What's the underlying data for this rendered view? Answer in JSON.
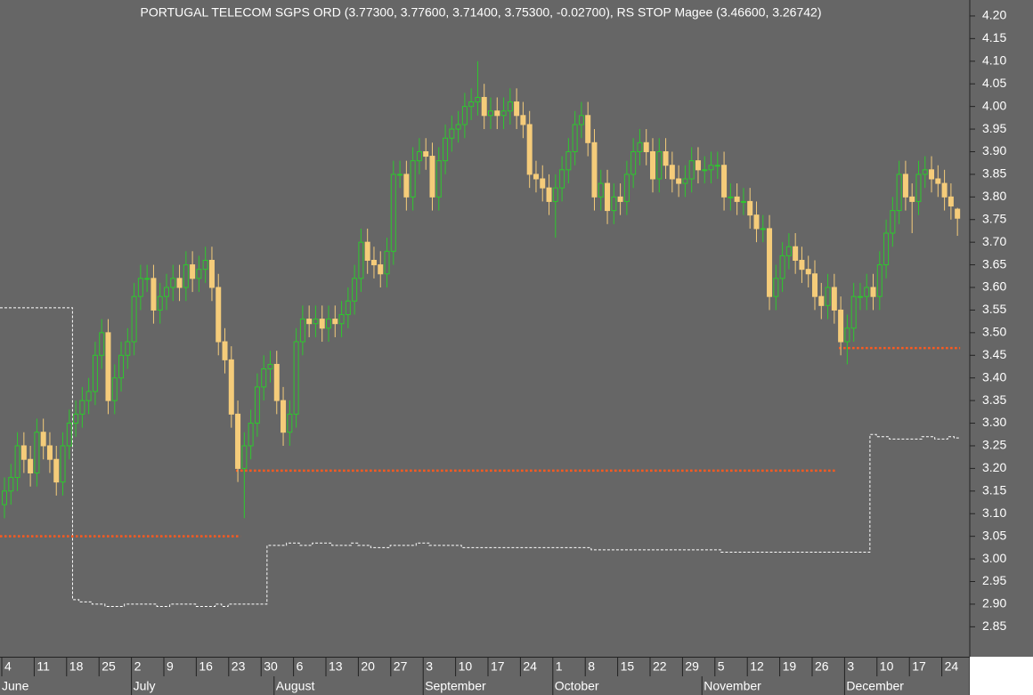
{
  "chart_data": {
    "type": "candlestick",
    "title": "PORTUGAL TELECOM SGPS ORD (3.77300, 3.77600, 3.71400, 3.75300, -0.02700), RS STOP Magee (3.46600, 3.26742)",
    "up_color": "#2ec82e",
    "down_color": "#f5cc7a",
    "stop_color": "#ffffff",
    "level_color": "#ff5a1f",
    "open": [
      3.12,
      3.15,
      3.18,
      3.25,
      3.22,
      3.19,
      3.28,
      3.25,
      3.22,
      3.17,
      3.25,
      3.3,
      3.32,
      3.35,
      3.37,
      3.45,
      3.5,
      3.35,
      3.4,
      3.45,
      3.48,
      3.58,
      3.62,
      3.62,
      3.55,
      3.58,
      3.6,
      3.62,
      3.6,
      3.65,
      3.62,
      3.64,
      3.66,
      3.6,
      3.48,
      3.44,
      3.32,
      3.2,
      3.25,
      3.3,
      3.38,
      3.42,
      3.43,
      3.35,
      3.28,
      3.32,
      3.48,
      3.53,
      3.52,
      3.53,
      3.51,
      3.53,
      3.52,
      3.54,
      3.57,
      3.62,
      3.7,
      3.66,
      3.65,
      3.63,
      3.68,
      3.85,
      3.85,
      3.8,
      3.88,
      3.9,
      3.89,
      3.8,
      3.88,
      3.93,
      3.95,
      3.96,
      4.0,
      4.01,
      4.02,
      3.98,
      3.99,
      3.98,
      3.99,
      4.01,
      3.98,
      3.96,
      3.85,
      3.84,
      3.82,
      3.79,
      3.82,
      3.86,
      3.9,
      3.96,
      3.98,
      3.92,
      3.8,
      3.83,
      3.77,
      3.8,
      3.79,
      3.85,
      3.9,
      3.92,
      3.9,
      3.84,
      3.9,
      3.87,
      3.84,
      3.83,
      3.84,
      3.88,
      3.86,
      3.86,
      3.87,
      3.87,
      3.8,
      3.8,
      3.79,
      3.79,
      3.76,
      3.73,
      3.73,
      3.58,
      3.62,
      3.67,
      3.69,
      3.66,
      3.64,
      3.63,
      3.58,
      3.56,
      3.6,
      3.55,
      3.48,
      3.51,
      3.58,
      3.58,
      3.6,
      3.58,
      3.65,
      3.72,
      3.77,
      3.85,
      3.8,
      3.79,
      3.85,
      3.86,
      3.84,
      3.83,
      3.8,
      3.773
    ],
    "high": [
      3.18,
      3.21,
      3.28,
      3.28,
      3.25,
      3.31,
      3.31,
      3.28,
      3.25,
      3.28,
      3.33,
      3.35,
      3.38,
      3.4,
      3.48,
      3.53,
      3.53,
      3.43,
      3.48,
      3.51,
      3.61,
      3.65,
      3.65,
      3.65,
      3.61,
      3.63,
      3.65,
      3.65,
      3.68,
      3.68,
      3.67,
      3.69,
      3.69,
      3.63,
      3.51,
      3.47,
      3.35,
      3.28,
      3.33,
      3.41,
      3.45,
      3.46,
      3.46,
      3.38,
      3.35,
      3.51,
      3.56,
      3.56,
      3.56,
      3.56,
      3.56,
      3.56,
      3.57,
      3.6,
      3.65,
      3.73,
      3.73,
      3.69,
      3.68,
      3.71,
      3.88,
      3.88,
      3.88,
      3.91,
      3.93,
      3.93,
      3.92,
      3.91,
      3.96,
      3.98,
      3.99,
      4.03,
      4.04,
      4.1,
      4.05,
      4.02,
      4.02,
      4.02,
      4.04,
      4.04,
      4.01,
      3.99,
      3.88,
      3.87,
      3.85,
      3.85,
      3.89,
      3.93,
      3.99,
      4.01,
      4.01,
      3.95,
      3.86,
      3.86,
      3.83,
      3.83,
      3.88,
      3.93,
      3.95,
      3.95,
      3.93,
      3.93,
      3.93,
      3.9,
      3.87,
      3.87,
      3.91,
      3.91,
      3.89,
      3.9,
      3.9,
      3.9,
      3.83,
      3.83,
      3.82,
      3.82,
      3.79,
      3.76,
      3.76,
      3.65,
      3.7,
      3.72,
      3.72,
      3.69,
      3.67,
      3.66,
      3.61,
      3.63,
      3.63,
      3.58,
      3.54,
      3.61,
      3.61,
      3.63,
      3.63,
      3.68,
      3.75,
      3.8,
      3.88,
      3.88,
      3.83,
      3.88,
      3.89,
      3.89,
      3.87,
      3.86,
      3.83,
      3.776
    ],
    "low": [
      3.09,
      3.12,
      3.15,
      3.19,
      3.16,
      3.16,
      3.22,
      3.19,
      3.14,
      3.14,
      3.22,
      3.27,
      3.29,
      3.32,
      3.34,
      3.42,
      3.32,
      3.32,
      3.37,
      3.42,
      3.45,
      3.55,
      3.59,
      3.52,
      3.52,
      3.55,
      3.57,
      3.57,
      3.57,
      3.59,
      3.59,
      3.61,
      3.57,
      3.45,
      3.41,
      3.29,
      3.17,
      3.09,
      3.22,
      3.27,
      3.35,
      3.39,
      3.32,
      3.25,
      3.25,
      3.29,
      3.45,
      3.49,
      3.49,
      3.48,
      3.48,
      3.49,
      3.49,
      3.51,
      3.54,
      3.59,
      3.63,
      3.62,
      3.6,
      3.6,
      3.65,
      3.82,
      3.77,
      3.77,
      3.85,
      3.86,
      3.77,
      3.77,
      3.85,
      3.9,
      3.92,
      3.93,
      3.97,
      3.98,
      3.95,
      3.95,
      3.95,
      3.95,
      3.96,
      3.95,
      3.93,
      3.82,
      3.81,
      3.79,
      3.76,
      3.71,
      3.79,
      3.83,
      3.87,
      3.93,
      3.89,
      3.77,
      3.77,
      3.74,
      3.74,
      3.76,
      3.76,
      3.82,
      3.87,
      3.87,
      3.81,
      3.81,
      3.84,
      3.81,
      3.8,
      3.8,
      3.81,
      3.83,
      3.83,
      3.83,
      3.84,
      3.77,
      3.77,
      3.76,
      3.76,
      3.73,
      3.7,
      3.7,
      3.55,
      3.55,
      3.59,
      3.64,
      3.63,
      3.61,
      3.6,
      3.55,
      3.53,
      3.53,
      3.52,
      3.45,
      3.43,
      3.48,
      3.55,
      3.55,
      3.55,
      3.55,
      3.62,
      3.69,
      3.74,
      3.77,
      3.72,
      3.76,
      3.82,
      3.81,
      3.8,
      3.77,
      3.75,
      3.714
    ],
    "close": [
      3.15,
      3.18,
      3.25,
      3.22,
      3.19,
      3.28,
      3.25,
      3.22,
      3.17,
      3.25,
      3.3,
      3.32,
      3.35,
      3.37,
      3.45,
      3.5,
      3.35,
      3.4,
      3.45,
      3.48,
      3.58,
      3.62,
      3.62,
      3.55,
      3.58,
      3.6,
      3.62,
      3.6,
      3.65,
      3.62,
      3.64,
      3.66,
      3.6,
      3.48,
      3.44,
      3.32,
      3.2,
      3.25,
      3.3,
      3.38,
      3.42,
      3.43,
      3.35,
      3.28,
      3.32,
      3.48,
      3.53,
      3.52,
      3.53,
      3.51,
      3.53,
      3.52,
      3.54,
      3.57,
      3.62,
      3.7,
      3.66,
      3.65,
      3.63,
      3.68,
      3.85,
      3.85,
      3.8,
      3.88,
      3.9,
      3.89,
      3.8,
      3.88,
      3.93,
      3.95,
      3.96,
      4.0,
      4.01,
      4.02,
      3.98,
      3.99,
      3.98,
      3.99,
      4.01,
      3.98,
      3.96,
      3.85,
      3.84,
      3.82,
      3.79,
      3.82,
      3.86,
      3.9,
      3.96,
      3.98,
      3.92,
      3.8,
      3.83,
      3.77,
      3.8,
      3.79,
      3.85,
      3.9,
      3.92,
      3.9,
      3.84,
      3.9,
      3.87,
      3.84,
      3.83,
      3.84,
      3.88,
      3.86,
      3.86,
      3.87,
      3.87,
      3.8,
      3.8,
      3.79,
      3.79,
      3.76,
      3.73,
      3.73,
      3.58,
      3.62,
      3.67,
      3.69,
      3.66,
      3.64,
      3.63,
      3.58,
      3.56,
      3.6,
      3.55,
      3.48,
      3.51,
      3.58,
      3.58,
      3.6,
      3.58,
      3.65,
      3.72,
      3.77,
      3.85,
      3.8,
      3.79,
      3.85,
      3.86,
      3.84,
      3.83,
      3.8,
      3.78,
      3.753
    ],
    "stop": [
      3.555,
      3.555,
      3.555,
      3.555,
      3.555,
      3.555,
      3.555,
      3.555,
      3.555,
      3.555,
      3.555,
      2.91,
      2.905,
      2.905,
      2.9,
      2.9,
      2.895,
      2.895,
      2.895,
      2.9,
      2.9,
      2.9,
      2.9,
      2.9,
      2.895,
      2.895,
      2.9,
      2.9,
      2.9,
      2.9,
      2.895,
      2.895,
      2.895,
      2.9,
      2.895,
      2.9,
      2.9,
      2.9,
      2.9,
      2.9,
      2.9,
      3.03,
      3.03,
      3.03,
      3.035,
      3.035,
      3.03,
      3.03,
      3.035,
      3.035,
      3.035,
      3.03,
      3.03,
      3.03,
      3.035,
      3.03,
      3.03,
      3.025,
      3.025,
      3.025,
      3.03,
      3.03,
      3.03,
      3.03,
      3.035,
      3.035,
      3.03,
      3.03,
      3.03,
      3.03,
      3.03,
      3.025,
      3.025,
      3.025,
      3.025,
      3.025,
      3.025,
      3.025,
      3.025,
      3.025,
      3.025,
      3.025,
      3.025,
      3.025,
      3.025,
      3.025,
      3.025,
      3.025,
      3.025,
      3.025,
      3.025,
      3.02,
      3.02,
      3.02,
      3.02,
      3.02,
      3.02,
      3.02,
      3.02,
      3.02,
      3.02,
      3.02,
      3.02,
      3.02,
      3.02,
      3.02,
      3.02,
      3.02,
      3.02,
      3.02,
      3.02,
      3.015,
      3.015,
      3.015,
      3.015,
      3.015,
      3.015,
      3.015,
      3.015,
      3.015,
      3.015,
      3.015,
      3.015,
      3.015,
      3.015,
      3.015,
      3.015,
      3.015,
      3.015,
      3.015,
      3.015,
      3.015,
      3.015,
      3.015,
      3.275,
      3.27,
      3.27,
      3.265,
      3.265,
      3.265,
      3.265,
      3.265,
      3.27,
      3.27,
      3.265,
      3.265,
      3.27,
      3.26742
    ],
    "levels": [
      {
        "from": 0,
        "to": 36,
        "value": 3.05
      },
      {
        "from": 36,
        "to": 128,
        "value": 3.195
      },
      {
        "from": 129,
        "to": 147,
        "value": 3.466
      }
    ],
    "ylim": [
      2.7838,
      4.2353
    ],
    "yticks": [
      {
        "value": 4.2,
        "label": "4.20"
      },
      {
        "value": 4.15,
        "label": "4.15"
      },
      {
        "value": 4.1,
        "label": "4.10"
      },
      {
        "value": 4.05,
        "label": "4.05"
      },
      {
        "value": 4.0,
        "label": "4.00"
      },
      {
        "value": 3.95,
        "label": "3.95"
      },
      {
        "value": 3.9,
        "label": "3.90"
      },
      {
        "value": 3.85,
        "label": "3.85"
      },
      {
        "value": 3.8,
        "label": "3.80"
      },
      {
        "value": 3.75,
        "label": "3.75"
      },
      {
        "value": 3.7,
        "label": "3.70"
      },
      {
        "value": 3.65,
        "label": "3.65"
      },
      {
        "value": 3.6,
        "label": "3.60"
      },
      {
        "value": 3.55,
        "label": "3.55"
      },
      {
        "value": 3.5,
        "label": "3.50"
      },
      {
        "value": 3.45,
        "label": "3.45"
      },
      {
        "value": 3.4,
        "label": "3.40"
      },
      {
        "value": 3.35,
        "label": "3.35"
      },
      {
        "value": 3.3,
        "label": "3.30"
      },
      {
        "value": 3.25,
        "label": "3.25"
      },
      {
        "value": 3.2,
        "label": "3.20"
      },
      {
        "value": 3.15,
        "label": "3.15"
      },
      {
        "value": 3.1,
        "label": "3.10"
      },
      {
        "value": 3.05,
        "label": "3.05"
      },
      {
        "value": 3.0,
        "label": "3.00"
      },
      {
        "value": 2.95,
        "label": "2.95"
      },
      {
        "value": 2.9,
        "label": "2.90"
      },
      {
        "value": 2.85,
        "label": "2.85"
      }
    ],
    "xticks": [
      {
        "value": 0,
        "label": "4"
      },
      {
        "value": 5,
        "label": "11"
      },
      {
        "value": 10,
        "label": "18"
      },
      {
        "value": 15,
        "label": "25"
      },
      {
        "value": 20,
        "label": "2"
      },
      {
        "value": 25,
        "label": "9"
      },
      {
        "value": 30,
        "label": "16"
      },
      {
        "value": 35,
        "label": "23"
      },
      {
        "value": 40,
        "label": "30"
      },
      {
        "value": 45,
        "label": "6"
      },
      {
        "value": 50,
        "label": "13"
      },
      {
        "value": 55,
        "label": "20"
      },
      {
        "value": 60,
        "label": "27"
      },
      {
        "value": 65,
        "label": "3"
      },
      {
        "value": 70,
        "label": "10"
      },
      {
        "value": 75,
        "label": "17"
      },
      {
        "value": 80,
        "label": "24"
      },
      {
        "value": 85,
        "label": "1"
      },
      {
        "value": 90,
        "label": "8"
      },
      {
        "value": 95,
        "label": "15"
      },
      {
        "value": 100,
        "label": "22"
      },
      {
        "value": 105,
        "label": "29"
      },
      {
        "value": 110,
        "label": "5"
      },
      {
        "value": 115,
        "label": "12"
      },
      {
        "value": 120,
        "label": "19"
      },
      {
        "value": 125,
        "label": "26"
      },
      {
        "value": 130,
        "label": "3"
      },
      {
        "value": 135,
        "label": "10"
      },
      {
        "value": 140,
        "label": "17"
      },
      {
        "value": 145,
        "label": "24"
      }
    ],
    "months": [
      {
        "value": -3,
        "label": "June"
      },
      {
        "value": 20,
        "label": "July"
      },
      {
        "value": 42,
        "label": "August"
      },
      {
        "value": 65,
        "label": "September"
      },
      {
        "value": 85,
        "label": "October"
      },
      {
        "value": 108,
        "label": "November"
      },
      {
        "value": 130,
        "label": "December"
      }
    ]
  }
}
